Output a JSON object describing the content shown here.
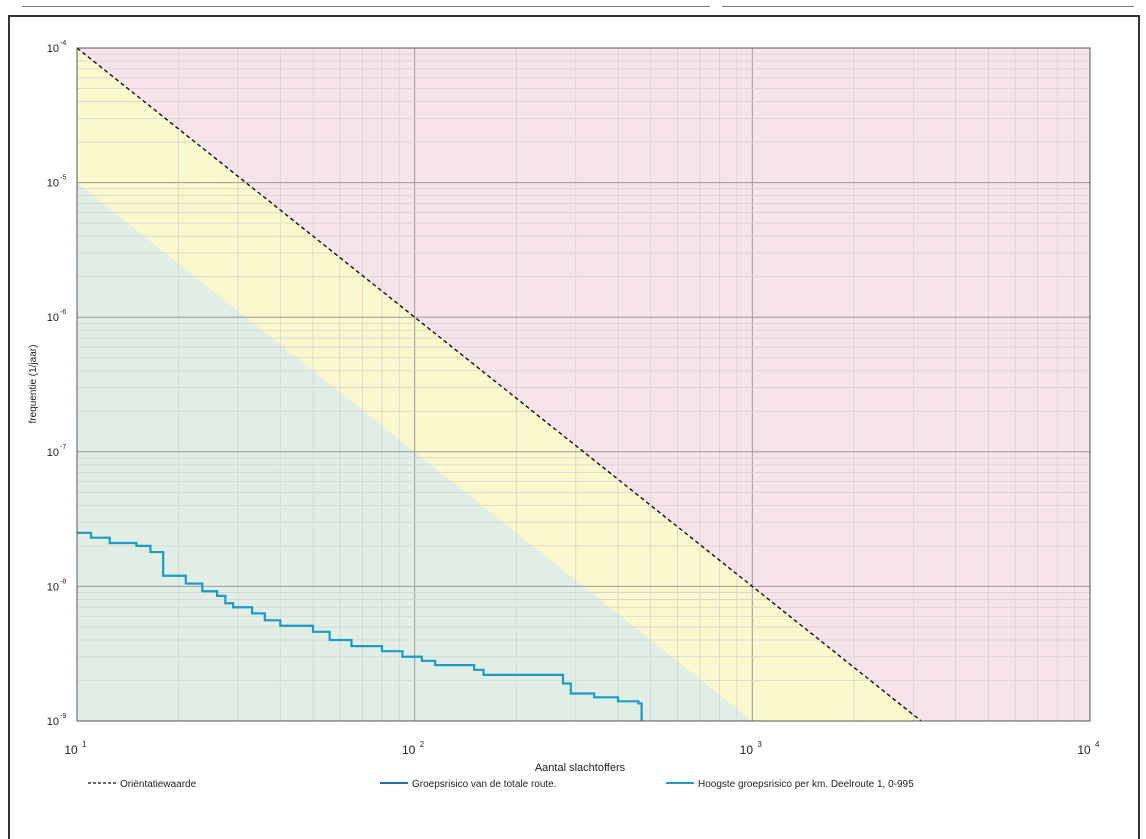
{
  "chart_data": {
    "type": "line",
    "title": "",
    "xlabel": "Aantal slachtoffers",
    "ylabel": "frequentie (1/jaar)",
    "x_scale": "log",
    "y_scale": "log",
    "xlim": [
      10,
      10000
    ],
    "ylim": [
      1e-09,
      0.0001
    ],
    "grid": true,
    "x_ticks": [
      {
        "value": 10,
        "base": "10",
        "exp": "1"
      },
      {
        "value": 100,
        "base": "10",
        "exp": "2"
      },
      {
        "value": 1000,
        "base": "10",
        "exp": "3"
      },
      {
        "value": 10000,
        "base": "10",
        "exp": "4"
      }
    ],
    "y_ticks": [
      {
        "value": 0.0001,
        "base": "10",
        "exp": "-4"
      },
      {
        "value": 1e-05,
        "base": "10",
        "exp": "-5"
      },
      {
        "value": 1e-06,
        "base": "10",
        "exp": "-6"
      },
      {
        "value": 1e-07,
        "base": "10",
        "exp": "-7"
      },
      {
        "value": 1e-08,
        "base": "10",
        "exp": "-8"
      },
      {
        "value": 1e-09,
        "base": "10",
        "exp": "-9"
      }
    ],
    "regions": [
      {
        "color": "#f7e3ea",
        "bound": "above orientation value"
      },
      {
        "color": "#fbf8cd",
        "bound": "between 1/10 and 1× orientation value"
      },
      {
        "color": "#e1eee6",
        "bound": "below 1/10 orientation value"
      }
    ],
    "series": [
      {
        "name": "Oriëntatiewaarde",
        "style": "dashed",
        "color": "#111111",
        "points": [
          [
            10,
            0.0001
          ],
          [
            3162,
            1e-09
          ]
        ]
      },
      {
        "name": "Groepsrisico van de totale route.",
        "style": "solid",
        "color": "#1f6fb2",
        "points": []
      },
      {
        "name": "Hoogste groepsrisico per km. Deelroute 1, 0-995",
        "style": "step",
        "color": "#1a9cc4",
        "points": [
          [
            10,
            2.5e-08
          ],
          [
            11,
            2.3e-08
          ],
          [
            12.5,
            2.1e-08
          ],
          [
            15,
            2e-08
          ],
          [
            16.5,
            1.8e-08
          ],
          [
            18,
            1.2e-08
          ],
          [
            21,
            1.05e-08
          ],
          [
            23.5,
            9.2e-09
          ],
          [
            26,
            8.5e-09
          ],
          [
            27.5,
            7.5e-09
          ],
          [
            29,
            7e-09
          ],
          [
            33,
            6.3e-09
          ],
          [
            36,
            5.6e-09
          ],
          [
            40,
            5.1e-09
          ],
          [
            50,
            4.6e-09
          ],
          [
            56,
            4e-09
          ],
          [
            65,
            3.6e-09
          ],
          [
            80,
            3.3e-09
          ],
          [
            92,
            3e-09
          ],
          [
            105,
            2.8e-09
          ],
          [
            115,
            2.6e-09
          ],
          [
            150,
            2.4e-09
          ],
          [
            160,
            2.2e-09
          ],
          [
            275,
            1.9e-09
          ],
          [
            290,
            1.6e-09
          ],
          [
            340,
            1.5e-09
          ],
          [
            400,
            1.4e-09
          ],
          [
            460,
            1.35e-09
          ],
          [
            470,
            1e-09
          ]
        ]
      }
    ],
    "legend_position": "bottom"
  },
  "legend": {
    "items": [
      {
        "label": "Oriëntatiewaarde"
      },
      {
        "label": "Groepsrisico van de totale route."
      },
      {
        "label": "Hoogste groepsrisico per km. Deelroute 1, 0-995"
      }
    ]
  }
}
